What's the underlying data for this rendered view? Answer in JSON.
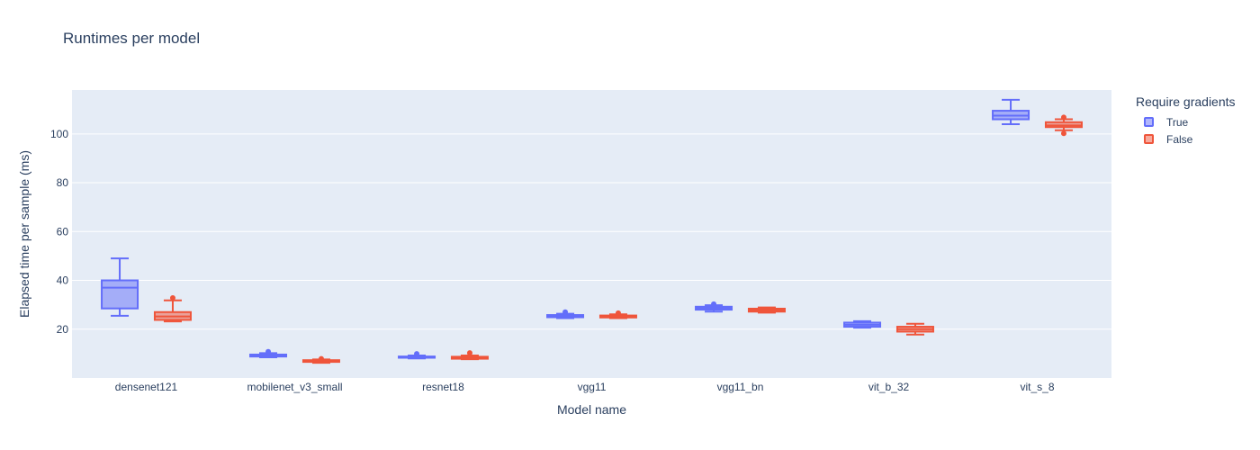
{
  "chart_data": {
    "type": "box",
    "title": "Runtimes per model",
    "xlabel": "Model name",
    "ylabel": "Elapsed time per sample (ms)",
    "ylim": [
      0,
      118
    ],
    "yticks": [
      20,
      40,
      60,
      80,
      100
    ],
    "grid": true,
    "legend_title": "Require gradients",
    "legend_position": "right",
    "categories": [
      "densenet121",
      "mobilenet_v3_small",
      "resnet18",
      "vgg11",
      "vgg11_bn",
      "vit_b_32",
      "vit_s_8"
    ],
    "series": [
      {
        "name": "True",
        "color": "#636efa",
        "fill": "rgba(99,110,250,0.5)",
        "boxes": [
          {
            "lowerfence": 25.5,
            "q1": 28.5,
            "median": 37,
            "q3": 40,
            "upperfence": 49,
            "outliers": []
          },
          {
            "lowerfence": 8.5,
            "q1": 8.8,
            "median": 9.2,
            "q3": 9.6,
            "upperfence": 10.2,
            "outliers": [
              10.8
            ]
          },
          {
            "lowerfence": 8.0,
            "q1": 8.3,
            "median": 8.5,
            "q3": 8.8,
            "upperfence": 9.2,
            "outliers": [
              9.9
            ]
          },
          {
            "lowerfence": 24.5,
            "q1": 24.9,
            "median": 25.3,
            "q3": 25.8,
            "upperfence": 26.3,
            "outliers": [
              27.0
            ]
          },
          {
            "lowerfence": 27.2,
            "q1": 28.0,
            "median": 28.6,
            "q3": 29.2,
            "upperfence": 29.8,
            "outliers": [
              30.3
            ]
          },
          {
            "lowerfence": 20.6,
            "q1": 21.0,
            "median": 21.8,
            "q3": 22.7,
            "upperfence": 23.3,
            "outliers": []
          },
          {
            "lowerfence": 104,
            "q1": 106,
            "median": 107.5,
            "q3": 109.5,
            "upperfence": 114,
            "outliers": []
          }
        ]
      },
      {
        "name": "False",
        "color": "#ef553b",
        "fill": "rgba(239,85,59,0.5)",
        "boxes": [
          {
            "lowerfence": 23.2,
            "q1": 23.8,
            "median": 25.2,
            "q3": 27,
            "upperfence": 31.8,
            "outliers": [
              32.8
            ]
          },
          {
            "lowerfence": 6.2,
            "q1": 6.6,
            "median": 7.0,
            "q3": 7.3,
            "upperfence": 7.6,
            "outliers": [
              7.9
            ]
          },
          {
            "lowerfence": 7.7,
            "q1": 7.9,
            "median": 8.3,
            "q3": 8.7,
            "upperfence": 9.2,
            "outliers": [
              10.3
            ]
          },
          {
            "lowerfence": 24.5,
            "q1": 24.8,
            "median": 25.2,
            "q3": 25.6,
            "upperfence": 26.1,
            "outliers": [
              26.6
            ]
          },
          {
            "lowerfence": 26.8,
            "q1": 27.2,
            "median": 27.8,
            "q3": 28.4,
            "upperfence": 28.9,
            "outliers": []
          },
          {
            "lowerfence": 17.8,
            "q1": 19.0,
            "median": 20.0,
            "q3": 21.0,
            "upperfence": 22.2,
            "outliers": []
          },
          {
            "lowerfence": 101.5,
            "q1": 102.8,
            "median": 103.5,
            "q3": 104.8,
            "upperfence": 106,
            "outliers": [
              100.2,
              106.8
            ]
          }
        ]
      }
    ]
  }
}
